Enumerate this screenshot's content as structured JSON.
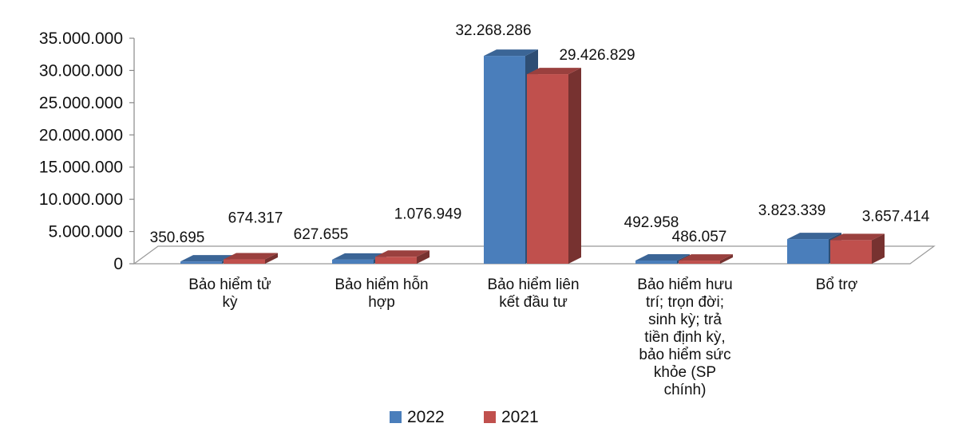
{
  "chart_data": {
    "type": "bar",
    "title": "",
    "xlabel": "",
    "ylabel": "",
    "ylim": [
      0,
      35000000
    ],
    "yticks": [
      "0",
      "5.000.000",
      "10.000.000",
      "15.000.000",
      "20.000.000",
      "25.000.000",
      "30.000.000",
      "35.000.000"
    ],
    "grid": false,
    "legend_position": "bottom",
    "categories": [
      [
        "Bảo hiểm tử",
        "kỳ"
      ],
      [
        "Bảo hiểm hỗn",
        "hợp"
      ],
      [
        "Bảo hiểm liên",
        "kết đầu tư"
      ],
      [
        "Bảo hiểm hưu",
        "trí; trọn đời;",
        "sinh kỳ; trả",
        "tiền định kỳ,",
        "bảo hiểm sức",
        "khỏe (SP",
        "chính)"
      ],
      [
        "Bổ trợ"
      ]
    ],
    "series": [
      {
        "name": "2022",
        "color": "#4A7EBB",
        "values": [
          350695,
          627655,
          32268286,
          492958,
          3823339
        ],
        "labels": [
          "350.695",
          "627.655",
          "32.268.286",
          "492.958",
          "3.823.339"
        ]
      },
      {
        "name": "2021",
        "color": "#C0504D",
        "values": [
          674317,
          1076949,
          29426829,
          486057,
          3657414
        ],
        "labels": [
          "674.317",
          "1.076.949",
          "29.426.829",
          "486.057",
          "3.657.414"
        ]
      }
    ]
  }
}
